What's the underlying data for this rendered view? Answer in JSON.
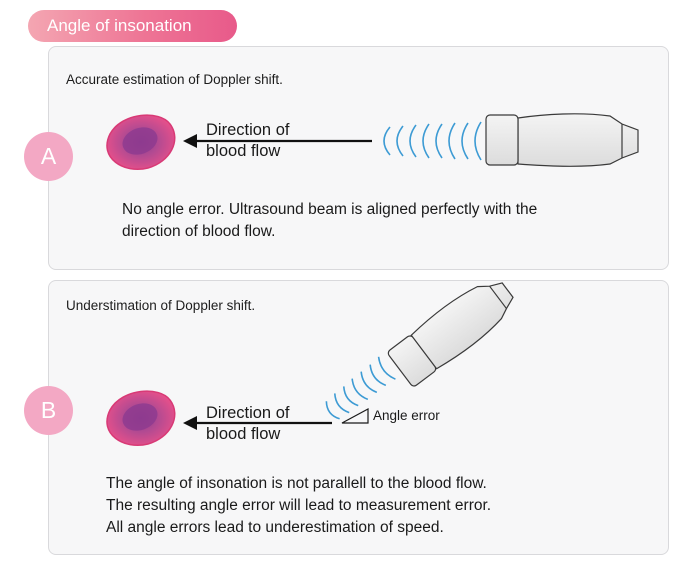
{
  "header": {
    "title": "Angle of insonation"
  },
  "panel_a": {
    "badge": "A",
    "heading": "Accurate estimation of Doppler shift.",
    "flow_label_line1": "Direction of",
    "flow_label_line2": "blood flow",
    "caption_line1": "No angle error. Ultrasound beam is aligned perfectly with the",
    "caption_line2": "direction of blood flow."
  },
  "panel_b": {
    "badge": "B",
    "heading": "Understimation of Doppler shift.",
    "flow_label_line1": "Direction of",
    "flow_label_line2": "blood flow",
    "angle_label": "Angle error",
    "caption_line1": "The angle of insonation is not parallell to the blood flow.",
    "caption_line2": "The resulting angle error will lead to measurement error.",
    "caption_line3": "All angle errors lead to underestimation of speed."
  },
  "colors": {
    "accent_pink": "#ee7595",
    "badge_pink": "#f3a8c4",
    "cell_outer": "#e2457e",
    "cell_inner": "#9a3f8e",
    "wave_blue": "#3d9bd4"
  }
}
